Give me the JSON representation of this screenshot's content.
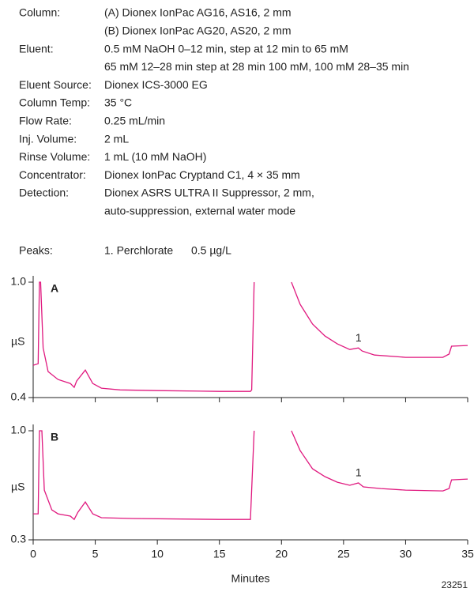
{
  "conditions": [
    {
      "label": "Column:",
      "lines": [
        "(A) Dionex IonPac AG16, AS16, 2 mm",
        "(B) Dionex IonPac AG20, AS20, 2 mm"
      ]
    },
    {
      "label": "Eluent:",
      "lines": [
        "0.5 mM NaOH 0–12 min, step at 12 min to 65 mM",
        "65 mM 12–28 min step at 28 min 100 mM, 100 mM 28–35 min"
      ]
    },
    {
      "label": "Eluent Source:",
      "lines": [
        "Dionex ICS-3000 EG"
      ]
    },
    {
      "label": "Column Temp:",
      "lines": [
        "35 °C"
      ]
    },
    {
      "label": "Flow Rate:",
      "lines": [
        "0.25 mL/min"
      ]
    },
    {
      "label": "Inj. Volume:",
      "lines": [
        "2 mL"
      ]
    },
    {
      "label": "Rinse Volume:",
      "lines": [
        "1 mL (10 mM NaOH)"
      ]
    },
    {
      "label": "Concentrator:",
      "lines": [
        "Dionex IonPac Cryptand C1, 4 × 35 mm"
      ]
    },
    {
      "label": "Detection:",
      "lines": [
        "Dionex ASRS ULTRA II Suppressor, 2 mm,",
        "auto-suppression, external water mode"
      ]
    }
  ],
  "peaks": {
    "label": "Peaks:",
    "items": [
      {
        "name": "1. Perchlorate",
        "amount": "0.5 µg/L"
      }
    ]
  },
  "figure_id": "23251",
  "chart_data": [
    {
      "type": "line",
      "panel": "A",
      "ylabel": "µS",
      "color": "#e0197f",
      "x": [
        0,
        0.4,
        0.5,
        0.6,
        0.8,
        1.2,
        2,
        3,
        3.3,
        3.5,
        4.2,
        4.8,
        5.5,
        7,
        10,
        15,
        17.5,
        17.6,
        17.8,
        null,
        20.8,
        21.5,
        22.5,
        23.5,
        24.5,
        25.5,
        26.2,
        26.5,
        27.5,
        30,
        33,
        33.5,
        33.7,
        35
      ],
      "values": [
        0.568,
        0.576,
        1.0,
        1.0,
        0.658,
        0.535,
        0.494,
        0.473,
        0.453,
        0.486,
        0.543,
        0.473,
        0.449,
        0.44,
        0.436,
        0.432,
        0.432,
        0.44,
        1.0,
        null,
        1.0,
        0.885,
        0.782,
        0.72,
        0.679,
        0.65,
        0.658,
        0.642,
        0.621,
        0.609,
        0.609,
        0.626,
        0.667,
        0.671
      ],
      "annotations": [
        {
          "text": "1",
          "x": 26.2
        }
      ],
      "xlim": [
        0,
        35
      ],
      "xticks": [
        0,
        5,
        10,
        15,
        20,
        25,
        30,
        35
      ],
      "ylim": [
        0.4,
        1.0
      ],
      "yticks": [
        {
          "value": 1.0,
          "label": "1.0"
        },
        0.4
      ]
    },
    {
      "type": "line",
      "panel": "B",
      "ylabel": "µS",
      "xlabel": "Minutes",
      "color": "#e0197f",
      "x": [
        0,
        0.4,
        0.5,
        0.7,
        0.9,
        1.5,
        2,
        3,
        3.3,
        3.6,
        4.2,
        4.8,
        5.5,
        8,
        15,
        17.5,
        17.8,
        null,
        20.8,
        21.5,
        22.5,
        23.5,
        24.5,
        25.5,
        26.2,
        26.6,
        28,
        30,
        33,
        33.5,
        33.7,
        35
      ],
      "values": [
        0.467,
        0.467,
        1.0,
        1.0,
        0.619,
        0.492,
        0.467,
        0.452,
        0.431,
        0.477,
        0.543,
        0.467,
        0.442,
        0.437,
        0.431,
        0.431,
        1.0,
        null,
        1.0,
        0.873,
        0.756,
        0.706,
        0.67,
        0.65,
        0.665,
        0.64,
        0.629,
        0.619,
        0.614,
        0.629,
        0.685,
        0.69
      ],
      "annotations": [
        {
          "text": "1",
          "x": 26.2
        }
      ],
      "xlim": [
        0,
        35
      ],
      "xticks": [
        0,
        5,
        10,
        15,
        20,
        25,
        30,
        35
      ],
      "ylim": [
        0.3,
        1.0
      ],
      "yticks": [
        {
          "value": 1.0,
          "label": "1.0"
        },
        0.3
      ]
    }
  ]
}
